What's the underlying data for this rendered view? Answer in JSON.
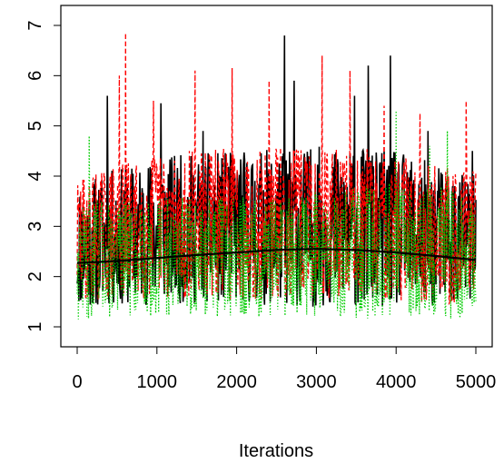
{
  "chart_data": {
    "type": "line",
    "title": "",
    "xlabel": "Iterations",
    "ylabel": "",
    "xlim": [
      0,
      5000
    ],
    "ylim": [
      1,
      7
    ],
    "xticks": [
      "0",
      "1000",
      "2000",
      "3000",
      "4000",
      "5000"
    ],
    "yticks": [
      "1",
      "2",
      "3",
      "4",
      "5",
      "6",
      "7"
    ],
    "grid": false,
    "legend": "none",
    "series": [
      {
        "style": "solid",
        "color": "#000000",
        "band": {
          "low": [
            1.35,
            1.45,
            1.45,
            1.4,
            1.35,
            1.4
          ],
          "high": [
            3.9,
            4.4,
            4.5,
            4.6,
            4.5,
            4.0
          ]
        },
        "peaks": [
          [
            380,
            5.6
          ],
          [
            1050,
            5.45
          ],
          [
            1580,
            4.9
          ],
          [
            2600,
            6.8
          ],
          [
            2720,
            5.9
          ],
          [
            3480,
            5.6
          ],
          [
            3650,
            6.2
          ],
          [
            3930,
            6.4
          ],
          [
            4400,
            4.9
          ],
          [
            4960,
            4.5
          ]
        ]
      },
      {
        "style": "dashed",
        "color": "#ff0000",
        "band": {
          "low": [
            1.5,
            1.55,
            1.55,
            1.55,
            1.5,
            1.45
          ],
          "high": [
            4.0,
            4.5,
            4.6,
            4.6,
            4.5,
            4.1
          ]
        },
        "peaks": [
          [
            610,
            6.85
          ],
          [
            530,
            6.0
          ],
          [
            960,
            5.5
          ],
          [
            1480,
            6.1
          ],
          [
            1940,
            6.15
          ],
          [
            2410,
            5.9
          ],
          [
            3070,
            6.4
          ],
          [
            3420,
            6.1
          ],
          [
            3850,
            5.4
          ],
          [
            4300,
            5.25
          ],
          [
            4880,
            5.5
          ]
        ]
      },
      {
        "style": "dotted",
        "color": "#00cc00",
        "band": {
          "low": [
            1.15,
            1.2,
            1.2,
            1.2,
            1.15,
            1.15
          ],
          "high": [
            3.5,
            3.6,
            3.6,
            3.7,
            3.9,
            3.7
          ]
        },
        "peaks": [
          [
            150,
            4.8
          ],
          [
            4000,
            5.3
          ],
          [
            4640,
            4.9
          ],
          [
            4420,
            4.6
          ]
        ]
      },
      {
        "style": "smooth",
        "color": "#000000",
        "x": [
          0,
          500,
          1000,
          1500,
          2000,
          2500,
          3000,
          3500,
          4000,
          4500,
          5000
        ],
        "values": [
          2.27,
          2.31,
          2.37,
          2.43,
          2.48,
          2.53,
          2.55,
          2.53,
          2.48,
          2.41,
          2.33
        ]
      }
    ]
  }
}
